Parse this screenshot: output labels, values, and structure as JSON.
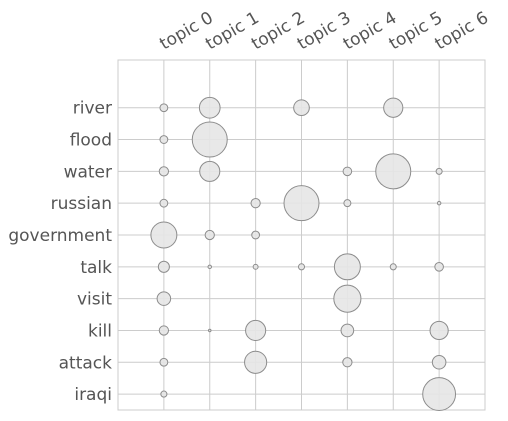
{
  "chart_data": {
    "type": "scatter",
    "title": "",
    "xlabel": "",
    "ylabel": "",
    "grid": true,
    "x_tick_labels": [
      "topic 0",
      "topic 1",
      "topic 2",
      "topic 3",
      "topic 4",
      "topic 5",
      "topic 6"
    ],
    "y_tick_labels": [
      "river",
      "flood",
      "water",
      "russian",
      "government",
      "talk",
      "visit",
      "kill",
      "attack",
      "iraqi"
    ],
    "xlim": [
      -1,
      7
    ],
    "ylim": [
      -0.5,
      10.5
    ],
    "points": [
      {
        "topic": 0,
        "word": "river",
        "value": 0.05
      },
      {
        "topic": 1,
        "word": "river",
        "value": 0.35
      },
      {
        "topic": 3,
        "word": "river",
        "value": 0.2
      },
      {
        "topic": 5,
        "word": "river",
        "value": 0.3
      },
      {
        "topic": 0,
        "word": "flood",
        "value": 0.05
      },
      {
        "topic": 1,
        "word": "flood",
        "value": 1.0
      },
      {
        "topic": 0,
        "word": "water",
        "value": 0.07
      },
      {
        "topic": 1,
        "word": "water",
        "value": 0.33
      },
      {
        "topic": 4,
        "word": "water",
        "value": 0.06
      },
      {
        "topic": 5,
        "word": "water",
        "value": 1.0
      },
      {
        "topic": 6,
        "word": "water",
        "value": 0.03
      },
      {
        "topic": 0,
        "word": "russian",
        "value": 0.05
      },
      {
        "topic": 2,
        "word": "russian",
        "value": 0.07
      },
      {
        "topic": 3,
        "word": "russian",
        "value": 1.0
      },
      {
        "topic": 4,
        "word": "russian",
        "value": 0.04
      },
      {
        "topic": 6,
        "word": "russian",
        "value": 0.01
      },
      {
        "topic": 0,
        "word": "government",
        "value": 0.55
      },
      {
        "topic": 1,
        "word": "government",
        "value": 0.07
      },
      {
        "topic": 2,
        "word": "government",
        "value": 0.05
      },
      {
        "topic": 0,
        "word": "talk",
        "value": 0.1
      },
      {
        "topic": 1,
        "word": "talk",
        "value": 0.01
      },
      {
        "topic": 2,
        "word": "talk",
        "value": 0.02
      },
      {
        "topic": 3,
        "word": "talk",
        "value": 0.03
      },
      {
        "topic": 4,
        "word": "talk",
        "value": 0.55
      },
      {
        "topic": 5,
        "word": "talk",
        "value": 0.03
      },
      {
        "topic": 6,
        "word": "talk",
        "value": 0.06
      },
      {
        "topic": 0,
        "word": "visit",
        "value": 0.15
      },
      {
        "topic": 4,
        "word": "visit",
        "value": 0.6
      },
      {
        "topic": 0,
        "word": "kill",
        "value": 0.07
      },
      {
        "topic": 1,
        "word": "kill",
        "value": 0.005
      },
      {
        "topic": 2,
        "word": "kill",
        "value": 0.33
      },
      {
        "topic": 4,
        "word": "kill",
        "value": 0.13
      },
      {
        "topic": 6,
        "word": "kill",
        "value": 0.27
      },
      {
        "topic": 0,
        "word": "attack",
        "value": 0.05
      },
      {
        "topic": 2,
        "word": "attack",
        "value": 0.4
      },
      {
        "topic": 4,
        "word": "attack",
        "value": 0.07
      },
      {
        "topic": 6,
        "word": "attack",
        "value": 0.15
      },
      {
        "topic": 0,
        "word": "iraqi",
        "value": 0.03
      },
      {
        "topic": 6,
        "word": "iraqi",
        "value": 0.88
      }
    ],
    "colors": {
      "marker_fill": "#e6e6e6",
      "marker_stroke": "#8c8c8c",
      "grid": "#cccccc",
      "frame": "#cccccc",
      "text": "#555555"
    }
  }
}
